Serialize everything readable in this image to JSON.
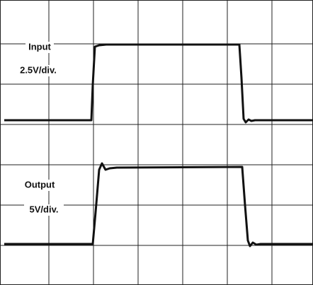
{
  "labels": {
    "input": "Input",
    "input_scale": "2.5V/div.",
    "output": "Output",
    "output_scale": "5V/div."
  }
}
